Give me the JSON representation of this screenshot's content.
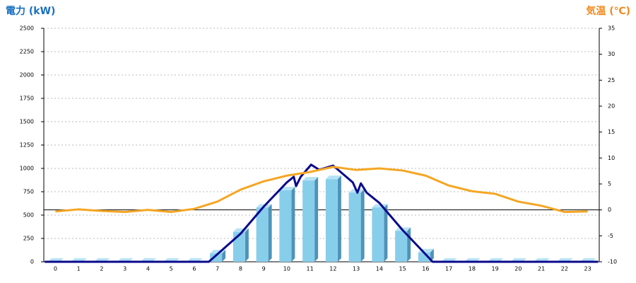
{
  "chart_data": {
    "type": "combo",
    "title": "電力 (kW)",
    "title_color": "#1a6fc0",
    "y2_title": "気温 (℃)",
    "y2_title_color": "#f08a1c",
    "categories": [
      "0",
      "1",
      "2",
      "3",
      "4",
      "5",
      "6",
      "7",
      "8",
      "9",
      "10",
      "11",
      "12",
      "13",
      "14",
      "15",
      "16",
      "17",
      "18",
      "19",
      "20",
      "21",
      "22",
      "23"
    ],
    "ylim": [
      0,
      2500
    ],
    "yticks": [
      0,
      250,
      500,
      750,
      1000,
      1250,
      1500,
      1750,
      2000,
      2250,
      2500
    ],
    "y2lim": [
      -10,
      35
    ],
    "y2ticks": [
      -10,
      -5,
      0,
      5,
      10,
      15,
      20,
      25,
      30,
      35
    ],
    "grid": true,
    "y2_zero_line": true,
    "series": [
      {
        "type": "bar",
        "color": "#87ceeb",
        "values": [
          0,
          0,
          0,
          0,
          0,
          0,
          0,
          90,
          320,
          580,
          765,
          870,
          885,
          740,
          580,
          330,
          100,
          0,
          0,
          0,
          0,
          0,
          0,
          0
        ]
      },
      {
        "type": "line",
        "color": "#0a0a8c",
        "x": [
          -0.46,
          6.63,
          8,
          9,
          10,
          10.3,
          10.4,
          10.6,
          11.05,
          11.4,
          12,
          12.85,
          13.05,
          13.2,
          13.45,
          14,
          15,
          15.9,
          16.3,
          23.45
        ],
        "values": [
          0,
          0,
          300,
          590,
          850,
          910,
          810,
          910,
          1040,
          985,
          1030,
          850,
          740,
          840,
          740,
          630,
          340,
          105,
          0,
          0
        ]
      },
      {
        "type": "line",
        "color": "#f5a623",
        "axis": "y2",
        "values": [
          -0.3,
          0.1,
          -0.2,
          -0.4,
          0,
          -0.4,
          0.2,
          1.6,
          3.9,
          5.5,
          6.6,
          7.3,
          8.3,
          7.7,
          8.0,
          7.6,
          6.6,
          4.7,
          3.6,
          3.1,
          1.6,
          0.8,
          -0.4,
          -0.3
        ]
      }
    ]
  }
}
